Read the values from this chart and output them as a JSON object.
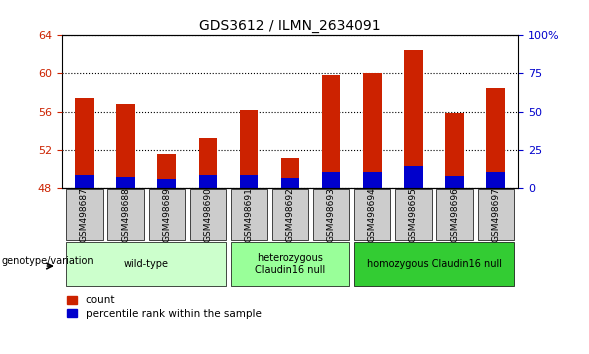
{
  "title": "GDS3612 / ILMN_2634091",
  "samples": [
    "GSM498687",
    "GSM498688",
    "GSM498689",
    "GSM498690",
    "GSM498691",
    "GSM498692",
    "GSM498693",
    "GSM498694",
    "GSM498695",
    "GSM498696",
    "GSM498697"
  ],
  "count_values": [
    57.4,
    56.8,
    51.5,
    53.2,
    56.2,
    51.1,
    59.8,
    60.0,
    62.5,
    55.8,
    58.5
  ],
  "percentile_values": [
    8.0,
    7.0,
    5.5,
    8.0,
    8.0,
    6.0,
    10.0,
    10.0,
    14.0,
    7.5,
    10.0
  ],
  "base": 48,
  "ylim_left": [
    48,
    64
  ],
  "ylim_right": [
    0,
    100
  ],
  "yticks_left": [
    48,
    52,
    56,
    60,
    64
  ],
  "yticks_right": [
    0,
    25,
    50,
    75,
    100
  ],
  "ytick_labels_right": [
    "0",
    "25",
    "50",
    "75",
    "100%"
  ],
  "groups": [
    {
      "label": "wild-type",
      "start": 0,
      "end": 3,
      "color": "#ccffcc"
    },
    {
      "label": "heterozygous\nClaudin16 null",
      "start": 4,
      "end": 6,
      "color": "#99ff99"
    },
    {
      "label": "homozygous Claudin16 null",
      "start": 7,
      "end": 10,
      "color": "#33cc33"
    }
  ],
  "bar_color_red": "#cc2200",
  "bar_color_blue": "#0000cc",
  "bar_width": 0.45,
  "grid_style": "dotted",
  "legend_count_label": "count",
  "legend_percentile_label": "percentile rank within the sample",
  "genotype_label": "genotype/variation",
  "left_tick_color": "#cc2200",
  "right_tick_color": "#0000cc",
  "background_color": "#ffffff",
  "sample_box_color": "#cccccc"
}
